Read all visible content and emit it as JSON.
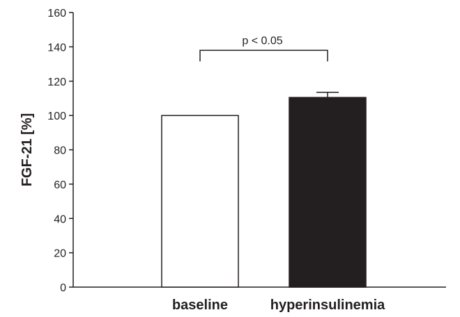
{
  "chart_data": {
    "type": "bar",
    "title": "",
    "xlabel": "",
    "ylabel": "FGF-21 [%]",
    "ylim": [
      0,
      160
    ],
    "yticks": [
      0,
      20,
      40,
      60,
      80,
      100,
      120,
      140,
      160
    ],
    "categories": [
      "baseline",
      "hyperinsulinemia"
    ],
    "values": [
      100,
      110.5
    ],
    "error_bars": [
      0,
      3
    ],
    "bar_fill": [
      "#ffffff",
      "#231f20"
    ],
    "bar_stroke": "#231f20",
    "grid": false,
    "legend": "none",
    "annotation": {
      "text": "p < 0.05",
      "between": [
        "baseline",
        "hyperinsulinemia"
      ],
      "y_value": 138
    }
  }
}
